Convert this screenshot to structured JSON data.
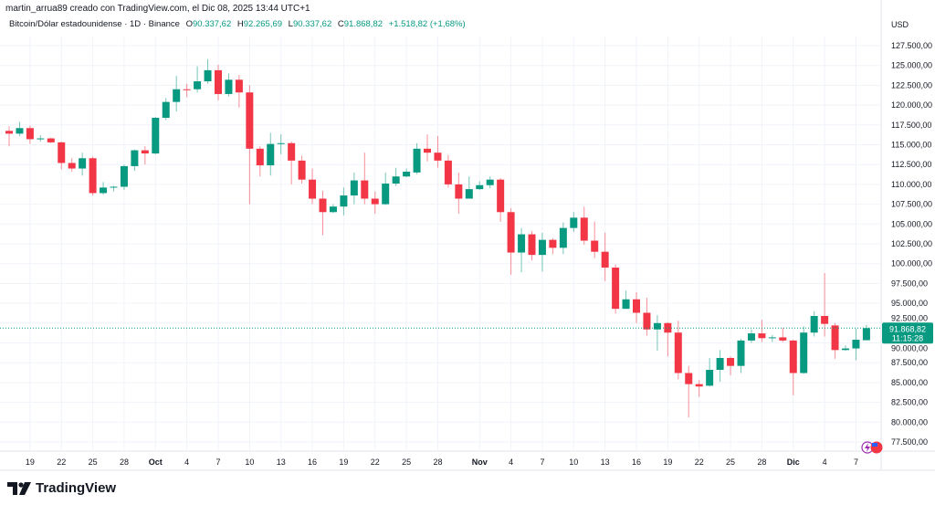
{
  "header": {
    "creator_line": "martin_arrua89 creado con TradingView.com, el Dic 08, 2025 13:44 UTC+1",
    "symbol": "Bitcoin/Dólar estadounidense · 1D · Binance",
    "open_label": "O",
    "open": "90.337,62",
    "high_label": "H",
    "high": "92.265,69",
    "low_label": "L",
    "low": "90.337,62",
    "close_label": "C",
    "close": "91.868,82",
    "change": "+1.518,82 (+1,68%)"
  },
  "price_axis": {
    "currency": "USD",
    "last_price": "91.868,82",
    "countdown": "11:15:28"
  },
  "logo": {
    "text": "TradingView"
  },
  "colors": {
    "up": "#089981",
    "down": "#f23645",
    "grid": "#f0f3fa"
  },
  "chart_data": {
    "type": "candlestick",
    "ylim": [
      77500,
      127500
    ],
    "yticks": [
      "127.500,00",
      "125.000,00",
      "122.500,00",
      "120.000,00",
      "117.500,00",
      "115.000,00",
      "112.500,00",
      "110.000,00",
      "107.500,00",
      "105.000,00",
      "102.500,00",
      "100.000,00",
      "97.500,00",
      "95.000,00",
      "92.500,00",
      "90.000,00",
      "87.500,00",
      "85.000,00",
      "82.500,00",
      "80.000,00",
      "77.500,00"
    ],
    "ytick_values": [
      127500,
      125000,
      122500,
      120000,
      117500,
      115000,
      112500,
      110000,
      107500,
      105000,
      102500,
      100000,
      97500,
      95000,
      92500,
      90000,
      87500,
      85000,
      82500,
      80000,
      77500
    ],
    "xticks": [
      {
        "date": "2025-09-19",
        "label": "19"
      },
      {
        "date": "2025-09-22",
        "label": "22"
      },
      {
        "date": "2025-09-25",
        "label": "25"
      },
      {
        "date": "2025-09-28",
        "label": "28"
      },
      {
        "date": "2025-10-01",
        "label": "Oct"
      },
      {
        "date": "2025-10-04",
        "label": "4"
      },
      {
        "date": "2025-10-07",
        "label": "7"
      },
      {
        "date": "2025-10-10",
        "label": "10"
      },
      {
        "date": "2025-10-13",
        "label": "13"
      },
      {
        "date": "2025-10-16",
        "label": "16"
      },
      {
        "date": "2025-10-19",
        "label": "19"
      },
      {
        "date": "2025-10-22",
        "label": "22"
      },
      {
        "date": "2025-10-25",
        "label": "25"
      },
      {
        "date": "2025-10-28",
        "label": "28"
      },
      {
        "date": "2025-11-01",
        "label": "Nov"
      },
      {
        "date": "2025-11-04",
        "label": "4"
      },
      {
        "date": "2025-11-07",
        "label": "7"
      },
      {
        "date": "2025-11-10",
        "label": "10"
      },
      {
        "date": "2025-11-13",
        "label": "13"
      },
      {
        "date": "2025-11-16",
        "label": "16"
      },
      {
        "date": "2025-11-19",
        "label": "19"
      },
      {
        "date": "2025-11-22",
        "label": "22"
      },
      {
        "date": "2025-11-25",
        "label": "25"
      },
      {
        "date": "2025-11-28",
        "label": "28"
      },
      {
        "date": "2025-12-01",
        "label": "Dic"
      },
      {
        "date": "2025-12-04",
        "label": "4"
      },
      {
        "date": "2025-12-07",
        "label": "7"
      }
    ],
    "columns": [
      "date",
      "open",
      "high",
      "low",
      "close"
    ],
    "candles": [
      [
        "2025-09-17",
        116750,
        117300,
        114800,
        116400
      ],
      [
        "2025-09-18",
        116400,
        117900,
        116100,
        117100
      ],
      [
        "2025-09-19",
        117100,
        117400,
        115100,
        115700
      ],
      [
        "2025-09-20",
        115700,
        116200,
        115400,
        115800
      ],
      [
        "2025-09-21",
        115800,
        115900,
        115200,
        115300
      ],
      [
        "2025-09-22",
        115300,
        115400,
        111900,
        112700
      ],
      [
        "2025-09-23",
        112700,
        113300,
        111600,
        112000
      ],
      [
        "2025-09-24",
        112000,
        114000,
        111100,
        113300
      ],
      [
        "2025-09-25",
        113300,
        113500,
        108600,
        108900
      ],
      [
        "2025-09-26",
        108900,
        110300,
        108700,
        109600
      ],
      [
        "2025-09-27",
        109600,
        109800,
        109100,
        109700
      ],
      [
        "2025-09-28",
        109700,
        112500,
        109300,
        112300
      ],
      [
        "2025-09-29",
        112300,
        114400,
        111700,
        114300
      ],
      [
        "2025-09-30",
        114300,
        114800,
        112500,
        113900
      ],
      [
        "2025-10-01",
        113900,
        118500,
        113800,
        118400
      ],
      [
        "2025-10-02",
        118400,
        120900,
        118100,
        120400
      ],
      [
        "2025-10-03",
        120400,
        123700,
        119200,
        122000
      ],
      [
        "2025-10-04",
        122000,
        122700,
        121000,
        121950
      ],
      [
        "2025-10-05",
        122000,
        124900,
        121600,
        123000
      ],
      [
        "2025-10-06",
        123000,
        125800,
        122700,
        124400
      ],
      [
        "2025-10-07",
        124400,
        125100,
        120600,
        121400
      ],
      [
        "2025-10-08",
        121400,
        124000,
        121100,
        123200
      ],
      [
        "2025-10-09",
        123200,
        123800,
        119700,
        121600
      ],
      [
        "2025-10-10",
        121600,
        122500,
        107500,
        114500
      ],
      [
        "2025-10-11",
        114500,
        114800,
        111000,
        112400
      ],
      [
        "2025-10-12",
        112400,
        116500,
        111100,
        115100
      ],
      [
        "2025-10-13",
        115100,
        116300,
        113800,
        115200
      ],
      [
        "2025-10-14",
        115200,
        115400,
        110000,
        113000
      ],
      [
        "2025-10-15",
        113000,
        113600,
        110100,
        110600
      ],
      [
        "2025-10-16",
        110600,
        112000,
        107500,
        108200
      ],
      [
        "2025-10-17",
        108200,
        109200,
        103600,
        106500
      ],
      [
        "2025-10-18",
        106500,
        107500,
        106400,
        107200
      ],
      [
        "2025-10-19",
        107200,
        109600,
        106100,
        108600
      ],
      [
        "2025-10-20",
        108600,
        111500,
        107500,
        110500
      ],
      [
        "2025-10-21",
        110500,
        114000,
        107500,
        108200
      ],
      [
        "2025-10-22",
        108200,
        109100,
        106300,
        107500
      ],
      [
        "2025-10-23",
        107500,
        111500,
        107400,
        110100
      ],
      [
        "2025-10-24",
        110100,
        112100,
        109800,
        111000
      ],
      [
        "2025-10-25",
        111000,
        112000,
        110900,
        111600
      ],
      [
        "2025-10-26",
        111500,
        115200,
        111300,
        114500
      ],
      [
        "2025-10-27",
        114500,
        116300,
        112900,
        114000
      ],
      [
        "2025-10-28",
        114000,
        116100,
        112100,
        113000
      ],
      [
        "2025-10-29",
        113000,
        113700,
        109600,
        110000
      ],
      [
        "2025-10-30",
        110000,
        111500,
        106300,
        108200
      ],
      [
        "2025-10-31",
        108200,
        111000,
        108200,
        109400
      ],
      [
        "2025-11-01",
        109400,
        110400,
        109300,
        109900
      ],
      [
        "2025-11-02",
        109900,
        111000,
        109500,
        110600
      ],
      [
        "2025-11-03",
        110600,
        110800,
        105300,
        106500
      ],
      [
        "2025-11-04",
        106500,
        107000,
        98600,
        101400
      ],
      [
        "2025-11-05",
        101400,
        104500,
        98900,
        103700
      ],
      [
        "2025-11-06",
        103700,
        104100,
        100400,
        101100
      ],
      [
        "2025-11-07",
        101100,
        103900,
        99000,
        103000
      ],
      [
        "2025-11-08",
        103000,
        103200,
        101200,
        102000
      ],
      [
        "2025-11-09",
        102000,
        105200,
        101200,
        104500
      ],
      [
        "2025-11-10",
        104500,
        106500,
        104000,
        105800
      ],
      [
        "2025-11-11",
        105800,
        107200,
        102400,
        102900
      ],
      [
        "2025-11-12",
        102900,
        105300,
        100700,
        101500
      ],
      [
        "2025-11-13",
        101500,
        103900,
        97800,
        99500
      ],
      [
        "2025-11-14",
        99500,
        99900,
        93700,
        94300
      ],
      [
        "2025-11-15",
        94300,
        96600,
        94300,
        95500
      ],
      [
        "2025-11-16",
        95500,
        96400,
        92500,
        93800
      ],
      [
        "2025-11-17",
        93800,
        95700,
        90900,
        91700
      ],
      [
        "2025-11-18",
        91700,
        93500,
        89000,
        92500
      ],
      [
        "2025-11-19",
        92500,
        92600,
        88300,
        91300
      ],
      [
        "2025-11-20",
        91300,
        92800,
        85400,
        86200
      ],
      [
        "2025-11-21",
        86200,
        87100,
        80600,
        84800
      ],
      [
        "2025-11-22",
        84800,
        85300,
        83200,
        84500
      ],
      [
        "2025-11-23",
        84600,
        88100,
        84500,
        86600
      ],
      [
        "2025-11-24",
        86600,
        89100,
        85100,
        88100
      ],
      [
        "2025-11-25",
        88100,
        88300,
        85900,
        87100
      ],
      [
        "2025-11-26",
        87100,
        90500,
        86200,
        90300
      ],
      [
        "2025-11-27",
        90300,
        91700,
        90000,
        91200
      ],
      [
        "2025-11-28",
        91200,
        92900,
        90100,
        90600
      ],
      [
        "2025-11-29",
        90600,
        91000,
        90100,
        90700
      ],
      [
        "2025-11-30",
        90700,
        91900,
        90100,
        90300
      ],
      [
        "2025-12-01",
        90300,
        90400,
        83400,
        86200
      ],
      [
        "2025-12-02",
        86200,
        92100,
        86100,
        91300
      ],
      [
        "2025-12-03",
        91300,
        94000,
        90800,
        93400
      ],
      [
        "2025-12-04",
        93400,
        98800,
        90800,
        92400
      ],
      [
        "2025-12-05",
        92200,
        92500,
        88000,
        89100
      ],
      [
        "2025-12-06",
        89100,
        89700,
        89000,
        89300
      ],
      [
        "2025-12-07",
        89300,
        91800,
        87800,
        90400
      ],
      [
        "2025-12-08",
        90337.62,
        92265.69,
        90337.62,
        91868.82
      ]
    ],
    "last_price": 91868.82,
    "grid": true
  }
}
